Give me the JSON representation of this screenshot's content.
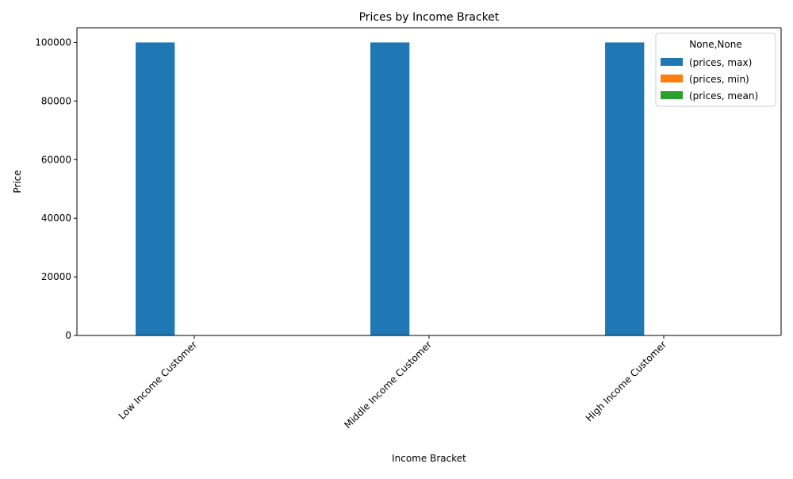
{
  "chart_data": {
    "type": "bar",
    "title": "Prices by Income Bracket",
    "xlabel": "Income Bracket",
    "ylabel": "Price",
    "categories": [
      "Low Income Customer",
      "Middle Income Customer",
      "High Income Customer"
    ],
    "series": [
      {
        "name": "(prices, max)",
        "values": [
          100000,
          100000,
          100000
        ],
        "color": "#1f77b4"
      },
      {
        "name": "(prices, min)",
        "values": [
          10,
          10,
          10
        ],
        "color": "#ff7f0e"
      },
      {
        "name": "(prices, mean)",
        "values": [
          55,
          55,
          55
        ],
        "color": "#2ca02c"
      }
    ],
    "ylim": [
      0,
      105000
    ],
    "yticks": [
      0,
      20000,
      40000,
      60000,
      80000,
      100000
    ],
    "grid": false,
    "legend": {
      "title": "None,None",
      "placement": "top-right"
    }
  }
}
